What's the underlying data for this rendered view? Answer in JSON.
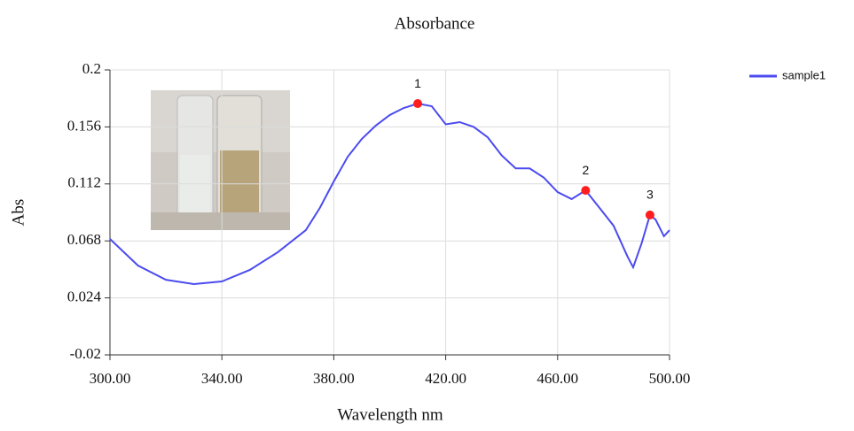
{
  "chart_data": {
    "type": "line",
    "title": "Absorbance",
    "x_label": "Wavelength nm",
    "y_label": "Abs",
    "x": [
      300,
      310,
      320,
      330,
      340,
      350,
      360,
      370,
      375,
      380,
      385,
      390,
      395,
      400,
      405,
      410,
      415,
      420,
      425,
      430,
      435,
      440,
      445,
      450,
      455,
      460,
      465,
      470,
      475,
      480,
      485,
      487,
      490,
      493,
      495,
      498,
      500
    ],
    "series": [
      {
        "name": "sample1",
        "color": "#4b4bf0",
        "values": [
          0.0695,
          0.049,
          0.038,
          0.0347,
          0.0367,
          0.0456,
          0.0593,
          0.0763,
          0.0934,
          0.1139,
          0.133,
          0.1467,
          0.157,
          0.1652,
          0.1706,
          0.174,
          0.172,
          0.158,
          0.1597,
          0.156,
          0.148,
          0.134,
          0.124,
          0.124,
          0.117,
          0.1057,
          0.1003,
          0.107,
          0.0934,
          0.0797,
          0.0558,
          0.0476,
          0.066,
          0.088,
          0.0845,
          0.0716,
          0.0763
        ]
      }
    ],
    "peaks": {
      "labels": [
        "1",
        "2",
        "3"
      ],
      "x": [
        410,
        470,
        493
      ],
      "values": [
        0.174,
        0.107,
        0.088
      ],
      "color": "#ff1e1e"
    },
    "xlim": [
      300,
      500
    ],
    "xticks": [
      {
        "value": 300,
        "label": "300.00"
      },
      {
        "value": 340,
        "label": "340.00"
      },
      {
        "value": 380,
        "label": "380.00"
      },
      {
        "value": 420,
        "label": "420.00"
      },
      {
        "value": 460,
        "label": "460.00"
      },
      {
        "value": 500,
        "label": "500.00"
      }
    ],
    "ylim": [
      -0.02,
      0.2
    ],
    "yticks": [
      -0.02,
      0.024,
      0.068,
      0.112,
      0.156,
      0.2
    ],
    "grid": true
  }
}
